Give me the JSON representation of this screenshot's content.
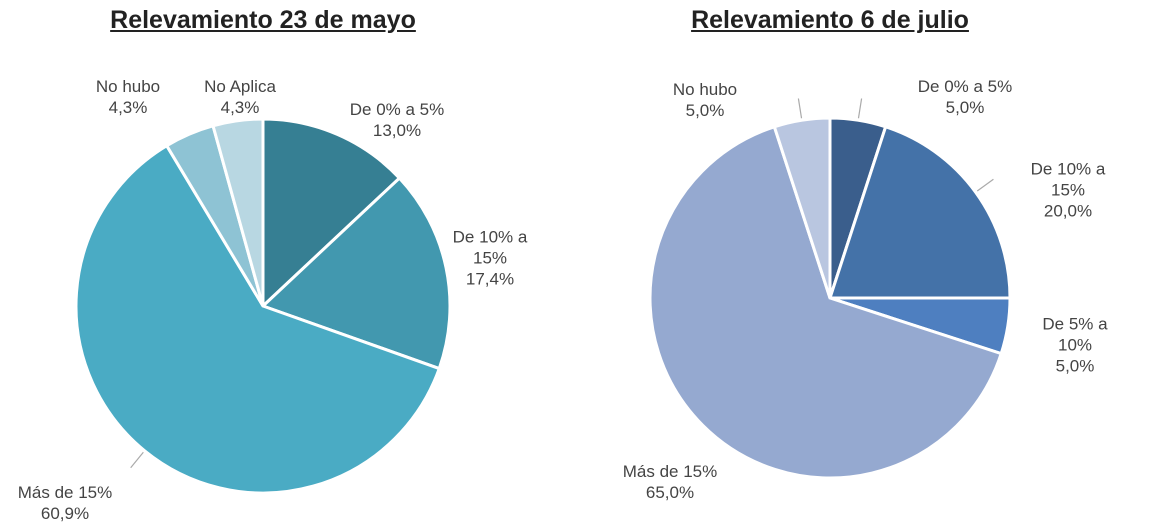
{
  "chart_data": [
    {
      "type": "pie",
      "title": "Relevamiento 23 de mayo",
      "categories": [
        "De 0% a 5%",
        "De 10% a 15%",
        "Más de 15%",
        "No hubo",
        "No Aplica"
      ],
      "values": [
        13.0,
        17.4,
        60.9,
        4.3,
        4.3
      ],
      "value_labels": [
        "13,0%",
        "17,4%",
        "60,9%",
        "4,3%",
        "4,3%"
      ],
      "colors": [
        "#367f93",
        "#4298af",
        "#4aabc4",
        "#8ec3d4",
        "#b8d7e2"
      ]
    },
    {
      "type": "pie",
      "title": "Relevamiento 6 de julio",
      "categories": [
        "De 0% a 5%",
        "De 10% a 15%",
        "De 5% a 10%",
        "Más de 15%",
        "No hubo"
      ],
      "values": [
        5.0,
        20.0,
        5.0,
        65.0,
        5.0
      ],
      "value_labels": [
        "5,0%",
        "20,0%",
        "5,0%",
        "65,0%",
        "5,0%"
      ],
      "colors": [
        "#3a5e8c",
        "#4472a8",
        "#4e7fc0",
        "#95a9d0",
        "#b9c6e0"
      ]
    }
  ]
}
